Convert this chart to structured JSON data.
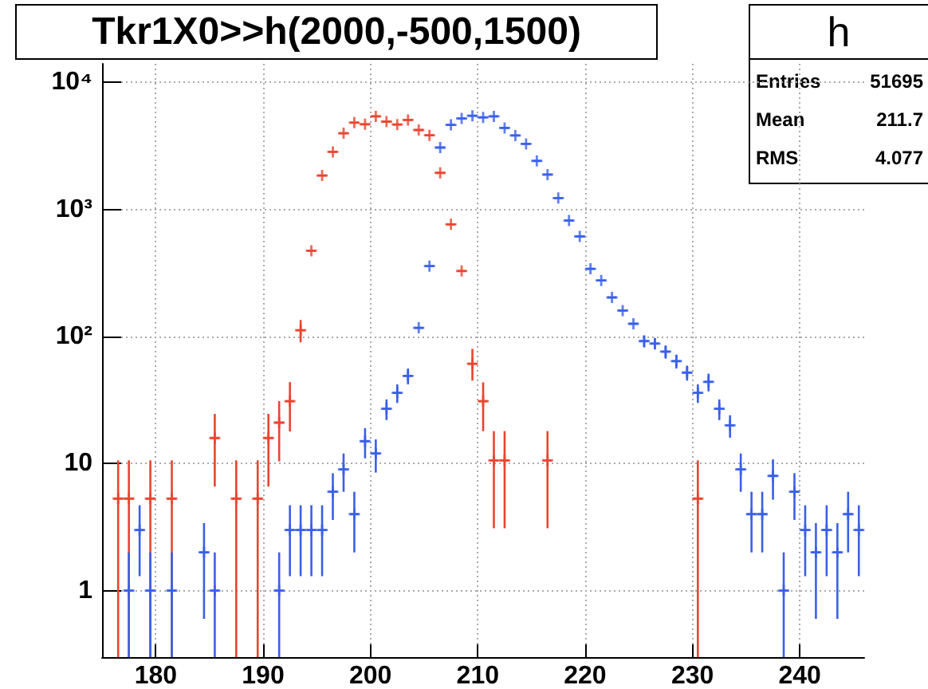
{
  "chart_data": {
    "type": "scatter",
    "title": "Tkr1X0>>h(2000,-500,1500)",
    "annotations": [
      "h",
      "Entries",
      "51695",
      "Mean",
      "211.7",
      "RMS",
      "4.077"
    ],
    "log": "y",
    "grid": true,
    "legend": false,
    "marker": "cross",
    "xlim": [
      175,
      246
    ],
    "xticks": [
      180,
      190,
      200,
      210,
      220,
      230,
      240
    ],
    "ylim": [
      0.3,
      14000
    ],
    "yticks": [
      1,
      10,
      {
        "value": 100,
        "label": "10²"
      },
      {
        "value": 1000,
        "label": "10³"
      },
      {
        "value": 10000,
        "label": "10⁴"
      }
    ],
    "series": [
      {
        "color": "#e8452f",
        "x": [
          176.5,
          177.5,
          179.5,
          181.5,
          185.5,
          187.5,
          189.5,
          190.5,
          191.5,
          192.5,
          193.5,
          194.5,
          195.5,
          196.5,
          197.5,
          198.5,
          199.5,
          200.5,
          201.5,
          202.5,
          203.5,
          204.5,
          205.5,
          206.5,
          207.5,
          208.5,
          209.5,
          210.5,
          211.5,
          212.5,
          216.5,
          230.5
        ],
        "values": [
          5.3,
          5.3,
          5.3,
          5.3,
          15.9,
          5.3,
          5.3,
          15.9,
          21,
          31,
          112,
          473,
          1850,
          2840,
          3980,
          4820,
          4680,
          5400,
          4910,
          4660,
          5060,
          4220,
          3830,
          1940,
          763,
          328,
          61,
          31,
          10.6,
          10.6,
          10.6,
          5.3
        ],
        "errors": [
          [
            0.3,
            10.6
          ],
          [
            0.3,
            10.6
          ],
          [
            0.3,
            10.6
          ],
          [
            0.3,
            10.6
          ],
          [
            6.6,
            24.6
          ],
          [
            0.3,
            10.6
          ],
          [
            0.3,
            10.6
          ],
          [
            6.6,
            24.6
          ],
          [
            10.4,
            31
          ],
          [
            17.9,
            43.8
          ],
          [
            90,
            135
          ],
          null,
          null,
          null,
          null,
          null,
          null,
          null,
          null,
          null,
          null,
          null,
          null,
          null,
          null,
          null,
          [
            45,
            80
          ],
          [
            18,
            43.6
          ],
          [
            3.1,
            18
          ],
          [
            3.1,
            18
          ],
          [
            3.1,
            18
          ],
          [
            0.3,
            10.6
          ]
        ],
        "xerrors": [
          0.5,
          0.5,
          0.5,
          0.5,
          0.5,
          0.5,
          0.5,
          0.5,
          0.5,
          0.5,
          0.5,
          0.5,
          0.5,
          0.5,
          0.5,
          0.5,
          0.5,
          0.5,
          0.5,
          0.5,
          0.5,
          0.5,
          0.5,
          0.5,
          0.5,
          0.5,
          0.5,
          0.5,
          0.5,
          0.5,
          0.5,
          0.5
        ]
      },
      {
        "color": "#3a5fe8",
        "x": [
          177.5,
          178.5,
          179.5,
          181.5,
          184.5,
          185.5,
          191.5,
          192.5,
          193.5,
          194.5,
          195.5,
          196.5,
          197.5,
          198.5,
          199.5,
          200.5,
          201.5,
          202.5,
          203.5,
          204.5,
          205.5,
          206.5,
          207.5,
          208.5,
          209.5,
          210.5,
          211.5,
          212.5,
          213.5,
          214.5,
          215.5,
          216.5,
          217.5,
          218.5,
          219.5,
          220.5,
          221.5,
          222.5,
          223.5,
          224.5,
          225.5,
          226.5,
          227.5,
          228.5,
          229.5,
          230.5,
          231.5,
          232.5,
          233.5,
          234.5,
          235.5,
          236.5,
          237.5,
          238.5,
          239.5,
          240.5,
          241.5,
          242.5,
          243.5,
          244.5,
          245.5
        ],
        "values": [
          1,
          3,
          1,
          1,
          2,
          1,
          1,
          3,
          3,
          3,
          3,
          6,
          9,
          4,
          15,
          12,
          27,
          36,
          49,
          117,
          358,
          3070,
          4630,
          5200,
          5460,
          5300,
          5400,
          4380,
          3820,
          3280,
          2410,
          1880,
          1230,
          818,
          613,
          341,
          276,
          203,
          160,
          126,
          92,
          88,
          76,
          64,
          52,
          36,
          44,
          27,
          20,
          9,
          4,
          4,
          8,
          1,
          6,
          3,
          2,
          3,
          2,
          4,
          3
        ],
        "errors": [
          [
            0.3,
            2
          ],
          [
            1.3,
            4.7
          ],
          [
            0.3,
            2
          ],
          [
            0.3,
            2
          ],
          [
            0.6,
            3.4
          ],
          [
            0.3,
            2
          ],
          [
            0.3,
            2
          ],
          [
            1.3,
            4.7
          ],
          [
            1.3,
            4.7
          ],
          [
            1.3,
            4.7
          ],
          [
            1.3,
            4.7
          ],
          [
            3.6,
            8.4
          ],
          [
            6,
            12
          ],
          [
            2,
            6
          ],
          [
            11,
            19
          ],
          [
            8.5,
            15.5
          ],
          [
            22,
            32
          ],
          [
            30,
            42
          ],
          [
            42,
            56
          ],
          null,
          null,
          null,
          null,
          null,
          null,
          null,
          null,
          null,
          null,
          null,
          null,
          null,
          null,
          null,
          null,
          null,
          null,
          null,
          null,
          null,
          [
            82,
            102
          ],
          [
            79,
            97
          ],
          [
            67,
            85
          ],
          [
            56,
            72
          ],
          [
            45,
            59
          ],
          [
            30,
            42
          ],
          [
            37,
            51
          ],
          [
            22,
            32
          ],
          [
            16,
            24
          ],
          [
            6,
            12
          ],
          [
            2,
            6
          ],
          [
            2,
            6
          ],
          [
            5.2,
            10.8
          ],
          [
            0.3,
            2
          ],
          [
            3.6,
            8.4
          ],
          [
            1.3,
            4.7
          ],
          [
            0.6,
            3.4
          ],
          [
            1.3,
            4.7
          ],
          [
            0.6,
            3.4
          ],
          [
            2,
            6
          ],
          [
            1.3,
            4.7
          ]
        ],
        "xerrors": [
          0.5,
          0.5,
          0.5,
          0.5,
          0.5,
          0.5,
          0.5,
          0.5,
          0.5,
          0.5,
          0.5,
          0.5,
          0.5,
          0.5,
          0.5,
          0.5,
          0.5,
          0.5,
          0.5,
          0.5,
          0.5,
          0.5,
          0.5,
          0.5,
          0.5,
          0.5,
          0.5,
          0.5,
          0.5,
          0.5,
          0.5,
          0.5,
          0.5,
          0.5,
          0.5,
          0.5,
          0.5,
          0.5,
          0.5,
          0.5,
          0.5,
          0.5,
          0.5,
          0.5,
          0.5,
          0.5,
          0.5,
          0.5,
          0.5,
          0.5,
          0.5,
          0.5,
          0.5,
          0.5,
          0.5,
          0.5,
          0.5,
          0.5,
          0.5,
          0.5,
          0.5
        ]
      }
    ]
  }
}
